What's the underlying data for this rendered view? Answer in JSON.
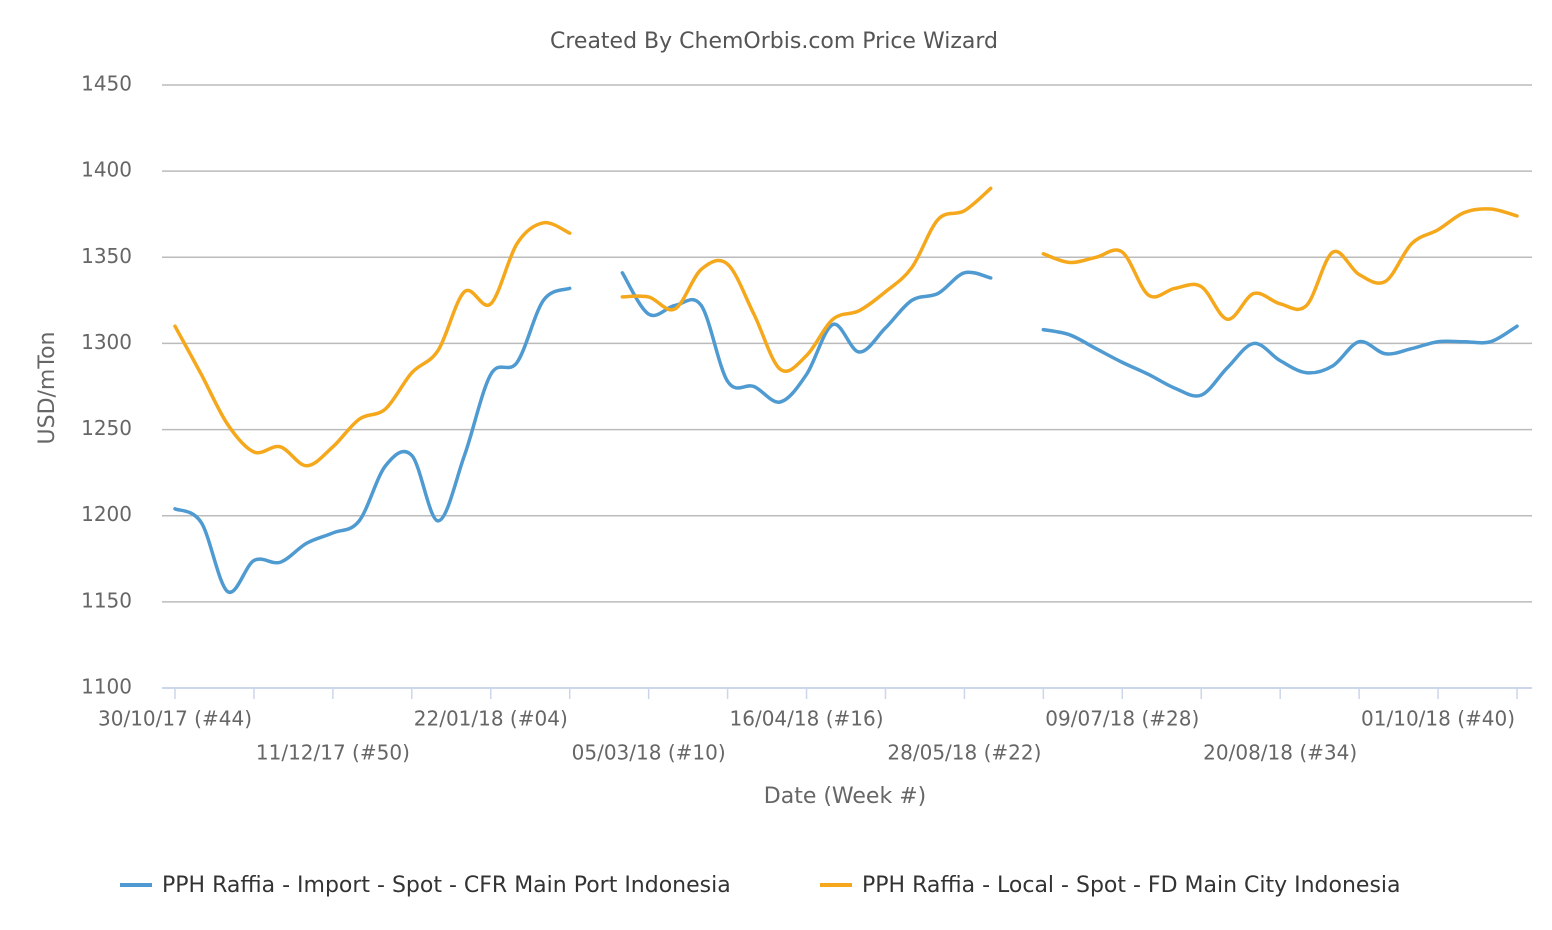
{
  "chart_data": {
    "type": "line",
    "title": "Created By ChemOrbis.com Price Wizard",
    "x_label": "Date (Week #)",
    "y_label": "USD/mTon",
    "categories": [
      "30/10/17 (#44)",
      null,
      null,
      null,
      null,
      null,
      "11/12/17 (#50)",
      null,
      null,
      null,
      null,
      null,
      "22/01/18 (#04)",
      null,
      null,
      null,
      null,
      null,
      "05/03/18 (#10)",
      null,
      null,
      null,
      null,
      null,
      "16/04/18 (#16)",
      null,
      null,
      null,
      null,
      null,
      "28/05/18 (#22)",
      null,
      null,
      null,
      null,
      null,
      "09/07/18 (#28)",
      null,
      null,
      null,
      null,
      null,
      "20/08/18 (#34)",
      null,
      null,
      null,
      null,
      null,
      "01/10/18 (#40)",
      null,
      null,
      null
    ],
    "series": [
      {
        "name": "PPH Raffia - Import - Spot - CFR Main Port Indonesia",
        "color": "#4f9bd1",
        "values": [
          1204,
          1196,
          1156,
          1174,
          1173,
          1184,
          1190,
          1197,
          1229,
          1235,
          1197,
          1235,
          1282,
          1289,
          1325,
          1332,
          null,
          1341,
          1317,
          1322,
          1322,
          1278,
          1275,
          1266,
          1282,
          1311,
          1295,
          1309,
          1325,
          1329,
          1341,
          1338,
          null,
          1308,
          1305,
          1297,
          1289,
          1282,
          1274,
          1270,
          1286,
          1300,
          1290,
          1283,
          1287,
          1301,
          1294,
          1297,
          1301,
          1301,
          1301,
          1310
        ]
      },
      {
        "name": "PPH Raffia - Local - Spot - FD Main City Indonesia",
        "color": "#f5a81c",
        "values": [
          1310,
          1282,
          1253,
          1237,
          1240,
          1229,
          1240,
          1256,
          1262,
          1283,
          1296,
          1330,
          1323,
          1358,
          1370,
          1364,
          null,
          1327,
          1327,
          1320,
          1343,
          1346,
          1317,
          1285,
          1293,
          1314,
          1319,
          1330,
          1344,
          1372,
          1377,
          1390,
          null,
          1352,
          1347,
          1350,
          1353,
          1328,
          1332,
          1333,
          1314,
          1329,
          1323,
          1322,
          1353,
          1340,
          1336,
          1358,
          1366,
          1376,
          1378,
          1374
        ]
      }
    ],
    "ylim": [
      1100,
      1450
    ],
    "yticks": [
      1100,
      1150,
      1200,
      1250,
      1300,
      1350,
      1400,
      1450
    ],
    "grid": true,
    "legend": "bottom"
  }
}
